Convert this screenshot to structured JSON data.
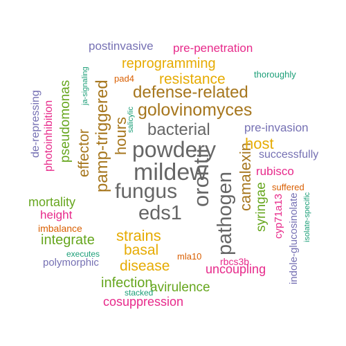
{
  "palette": {
    "green": "#1b9e77",
    "orange": "#d95f02",
    "purple": "#7570b3",
    "magenta": "#e7298a",
    "lime": "#66a61e",
    "gold": "#e6ab02",
    "brown": "#a6761d",
    "gray": "#666666"
  },
  "words": [
    {
      "text": "mildew",
      "color": "gray"
    },
    {
      "text": "fungus",
      "color": "gray"
    },
    {
      "text": "powdery",
      "color": "gray"
    },
    {
      "text": "orontii",
      "color": "gray"
    },
    {
      "text": "eds1",
      "color": "gray"
    },
    {
      "text": "bacterial",
      "color": "gray"
    },
    {
      "text": "pathogen",
      "color": "gray"
    },
    {
      "text": "golovinomyces",
      "color": "brown"
    },
    {
      "text": "defense-related",
      "color": "brown"
    },
    {
      "text": "pamp-triggered",
      "color": "brown"
    },
    {
      "text": "hours",
      "color": "brown"
    },
    {
      "text": "effector",
      "color": "brown"
    },
    {
      "text": "camalexin",
      "color": "brown"
    },
    {
      "text": "reprogramming",
      "color": "gold"
    },
    {
      "text": "resistance",
      "color": "gold"
    },
    {
      "text": "host",
      "color": "gold"
    },
    {
      "text": "strains",
      "color": "gold"
    },
    {
      "text": "basal",
      "color": "gold"
    },
    {
      "text": "disease",
      "color": "gold"
    },
    {
      "text": "pseudomonas",
      "color": "lime"
    },
    {
      "text": "syringae",
      "color": "lime"
    },
    {
      "text": "mortality",
      "color": "lime"
    },
    {
      "text": "integrate",
      "color": "lime"
    },
    {
      "text": "infection",
      "color": "lime"
    },
    {
      "text": "avirulence",
      "color": "lime"
    },
    {
      "text": "pre-penetration",
      "color": "magenta"
    },
    {
      "text": "photoinhibition",
      "color": "magenta"
    },
    {
      "text": "height",
      "color": "magenta"
    },
    {
      "text": "rubisco",
      "color": "magenta"
    },
    {
      "text": "cyp71a13",
      "color": "magenta"
    },
    {
      "text": "uncoupling",
      "color": "magenta"
    },
    {
      "text": "cosuppression",
      "color": "magenta"
    },
    {
      "text": "rbcs3b",
      "color": "magenta"
    },
    {
      "text": "postinvasive",
      "color": "purple"
    },
    {
      "text": "de-repressing",
      "color": "purple"
    },
    {
      "text": "pre-invasion",
      "color": "purple"
    },
    {
      "text": "successfully",
      "color": "purple"
    },
    {
      "text": "polymorphic",
      "color": "purple"
    },
    {
      "text": "indole-glucosinolate",
      "color": "purple"
    },
    {
      "text": "pad4",
      "color": "orange"
    },
    {
      "text": "imbalance",
      "color": "orange"
    },
    {
      "text": "suffered",
      "color": "orange"
    },
    {
      "text": "mla10",
      "color": "orange"
    },
    {
      "text": "thoroughly",
      "color": "green"
    },
    {
      "text": "ja-signaling",
      "color": "green"
    },
    {
      "text": "salicylic",
      "color": "green"
    },
    {
      "text": "isolate-specific",
      "color": "green"
    },
    {
      "text": "executes",
      "color": "green"
    },
    {
      "text": "stacked",
      "color": "green"
    }
  ]
}
